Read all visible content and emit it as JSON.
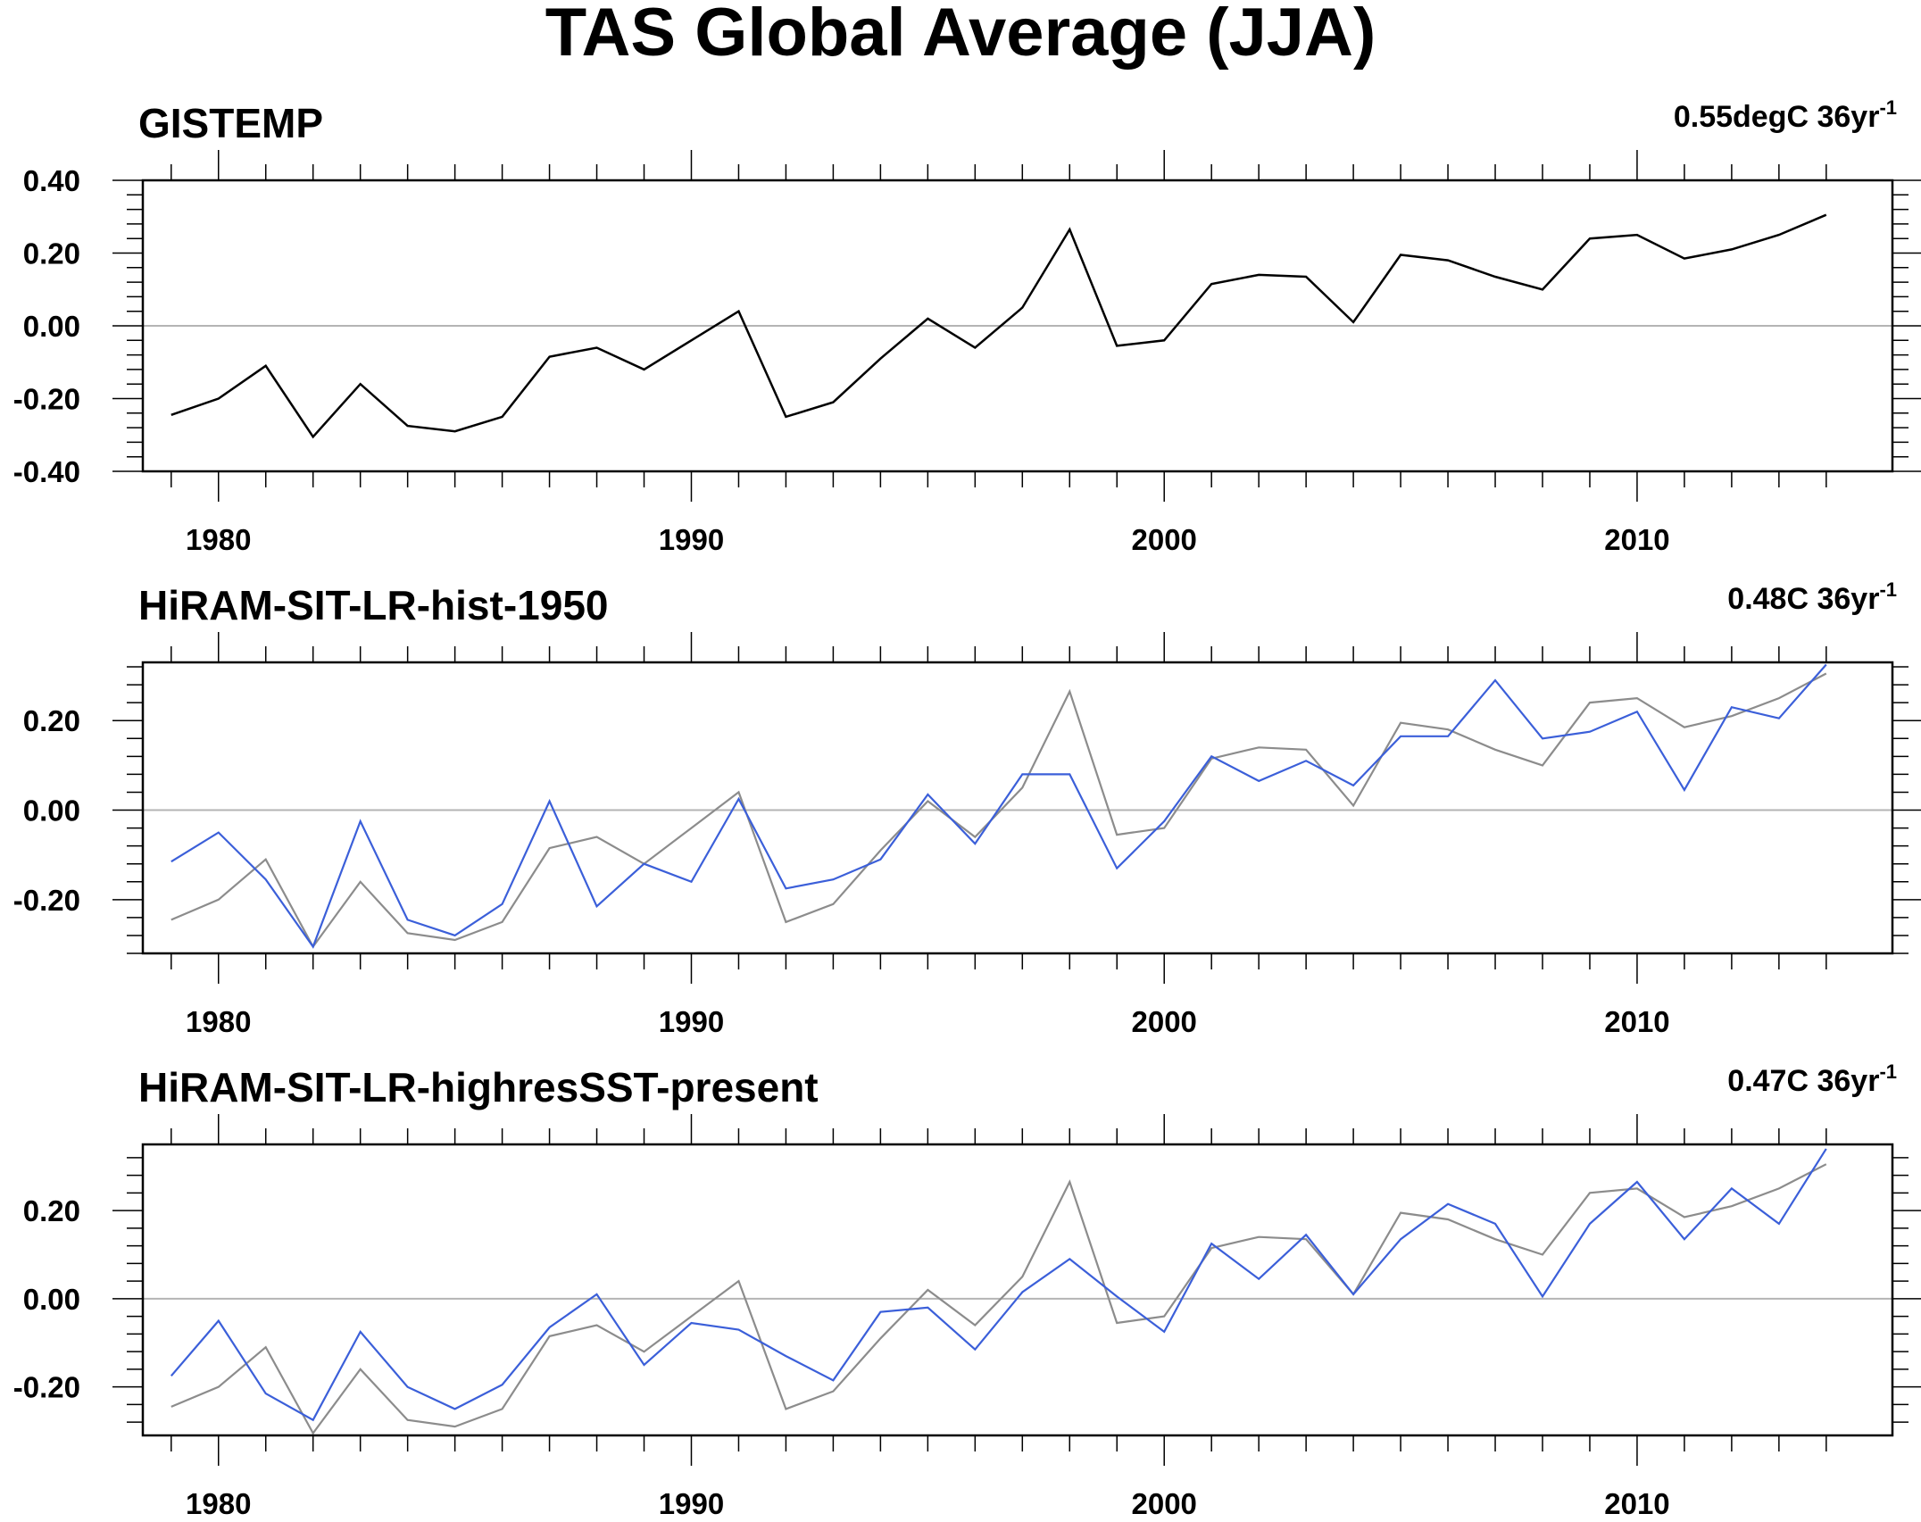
{
  "title": "TAS Global Average (JJA)",
  "colors": {
    "reference": "#000000",
    "reference_overlay": "#8c8c8c",
    "model": "#3b5fd9",
    "zero_line": "#b4b4b4"
  },
  "chart_data": [
    {
      "type": "line",
      "title": "GISTEMP",
      "trend_label": {
        "text": "0.55degC 36yr",
        "sup": "-1"
      },
      "xlabel": "",
      "ylabel": "",
      "xlim": [
        1979,
        2014
      ],
      "ylim": [
        -0.4,
        0.4
      ],
      "xticks": [
        1980,
        1990,
        2000,
        2010
      ],
      "xtick_labels": [
        "1980",
        "1990",
        "2000",
        "2010"
      ],
      "yticks": [
        -0.4,
        -0.2,
        0,
        0.2,
        0.4
      ],
      "ytick_labels": [
        "-0.40",
        "-0.20",
        "0.00",
        "0.20",
        "0.40"
      ],
      "x": [
        1979,
        1980,
        1981,
        1982,
        1983,
        1984,
        1985,
        1986,
        1987,
        1988,
        1989,
        1990,
        1991,
        1992,
        1993,
        1994,
        1995,
        1996,
        1997,
        1998,
        1999,
        2000,
        2001,
        2002,
        2003,
        2004,
        2005,
        2006,
        2007,
        2008,
        2009,
        2010,
        2011,
        2012,
        2013,
        2014
      ],
      "series": [
        {
          "role": "reference",
          "values": [
            -0.245,
            -0.2,
            -0.11,
            -0.305,
            -0.16,
            -0.275,
            -0.29,
            -0.25,
            -0.085,
            -0.06,
            -0.12,
            -0.04,
            0.04,
            -0.25,
            -0.21,
            -0.09,
            0.02,
            -0.06,
            0.05,
            0.265,
            -0.055,
            -0.04,
            0.115,
            0.14,
            0.135,
            0.01,
            0.195,
            0.18,
            0.135,
            0.1,
            0.24,
            0.25,
            0.185,
            0.21,
            0.25,
            0.305
          ]
        }
      ],
      "grid": false,
      "legend": "none"
    },
    {
      "type": "line",
      "title": "HiRAM-SIT-LR-hist-1950",
      "trend_label": {
        "text": "0.48C 36yr",
        "sup": "-1"
      },
      "xlabel": "",
      "ylabel": "",
      "xlim": [
        1979,
        2014
      ],
      "ylim": [
        -0.32,
        0.33
      ],
      "xticks": [
        1980,
        1990,
        2000,
        2010
      ],
      "xtick_labels": [
        "1980",
        "1990",
        "2000",
        "2010"
      ],
      "yticks": [
        -0.2,
        0,
        0.2
      ],
      "ytick_labels": [
        "-0.20",
        "0.00",
        "0.20"
      ],
      "x": [
        1979,
        1980,
        1981,
        1982,
        1983,
        1984,
        1985,
        1986,
        1987,
        1988,
        1989,
        1990,
        1991,
        1992,
        1993,
        1994,
        1995,
        1996,
        1997,
        1998,
        1999,
        2000,
        2001,
        2002,
        2003,
        2004,
        2005,
        2006,
        2007,
        2008,
        2009,
        2010,
        2011,
        2012,
        2013,
        2014
      ],
      "series": [
        {
          "role": "reference_overlay",
          "values": [
            -0.245,
            -0.2,
            -0.11,
            -0.305,
            -0.16,
            -0.275,
            -0.29,
            -0.25,
            -0.085,
            -0.06,
            -0.12,
            -0.04,
            0.04,
            -0.25,
            -0.21,
            -0.09,
            0.02,
            -0.06,
            0.05,
            0.265,
            -0.055,
            -0.04,
            0.115,
            0.14,
            0.135,
            0.01,
            0.195,
            0.18,
            0.135,
            0.1,
            0.24,
            0.25,
            0.185,
            0.21,
            0.25,
            0.305
          ]
        },
        {
          "role": "model",
          "values": [
            -0.115,
            -0.05,
            -0.155,
            -0.305,
            -0.025,
            -0.245,
            -0.28,
            -0.21,
            0.02,
            -0.215,
            -0.12,
            -0.16,
            0.025,
            -0.175,
            -0.155,
            -0.11,
            0.035,
            -0.075,
            0.08,
            0.08,
            -0.13,
            -0.025,
            0.12,
            0.065,
            0.11,
            0.055,
            0.165,
            0.165,
            0.29,
            0.16,
            0.175,
            0.22,
            0.045,
            0.23,
            0.205,
            0.325
          ]
        }
      ],
      "grid": false,
      "legend": "none"
    },
    {
      "type": "line",
      "title": "HiRAM-SIT-LR-highresSST-present",
      "trend_label": {
        "text": "0.47C 36yr",
        "sup": "-1"
      },
      "xlabel": "",
      "ylabel": "",
      "xlim": [
        1979,
        2014
      ],
      "ylim": [
        -0.31,
        0.35
      ],
      "xticks": [
        1980,
        1990,
        2000,
        2010
      ],
      "xtick_labels": [
        "1980",
        "1990",
        "2000",
        "2010"
      ],
      "yticks": [
        -0.2,
        0,
        0.2
      ],
      "ytick_labels": [
        "-0.20",
        "0.00",
        "0.20"
      ],
      "x": [
        1979,
        1980,
        1981,
        1982,
        1983,
        1984,
        1985,
        1986,
        1987,
        1988,
        1989,
        1990,
        1991,
        1992,
        1993,
        1994,
        1995,
        1996,
        1997,
        1998,
        1999,
        2000,
        2001,
        2002,
        2003,
        2004,
        2005,
        2006,
        2007,
        2008,
        2009,
        2010,
        2011,
        2012,
        2013,
        2014
      ],
      "series": [
        {
          "role": "reference_overlay",
          "values": [
            -0.245,
            -0.2,
            -0.11,
            -0.305,
            -0.16,
            -0.275,
            -0.29,
            -0.25,
            -0.085,
            -0.06,
            -0.12,
            -0.04,
            0.04,
            -0.25,
            -0.21,
            -0.09,
            0.02,
            -0.06,
            0.05,
            0.265,
            -0.055,
            -0.04,
            0.115,
            0.14,
            0.135,
            0.01,
            0.195,
            0.18,
            0.135,
            0.1,
            0.24,
            0.25,
            0.185,
            0.21,
            0.25,
            0.305
          ]
        },
        {
          "role": "model",
          "values": [
            -0.175,
            -0.05,
            -0.215,
            -0.275,
            -0.075,
            -0.2,
            -0.25,
            -0.195,
            -0.065,
            0.01,
            -0.15,
            -0.055,
            -0.07,
            -0.13,
            -0.185,
            -0.03,
            -0.02,
            -0.115,
            0.015,
            0.09,
            0.005,
            -0.075,
            0.125,
            0.045,
            0.145,
            0.01,
            0.135,
            0.215,
            0.17,
            0.005,
            0.17,
            0.265,
            0.135,
            0.25,
            0.17,
            0.34
          ]
        }
      ],
      "grid": false,
      "legend": "none"
    }
  ]
}
